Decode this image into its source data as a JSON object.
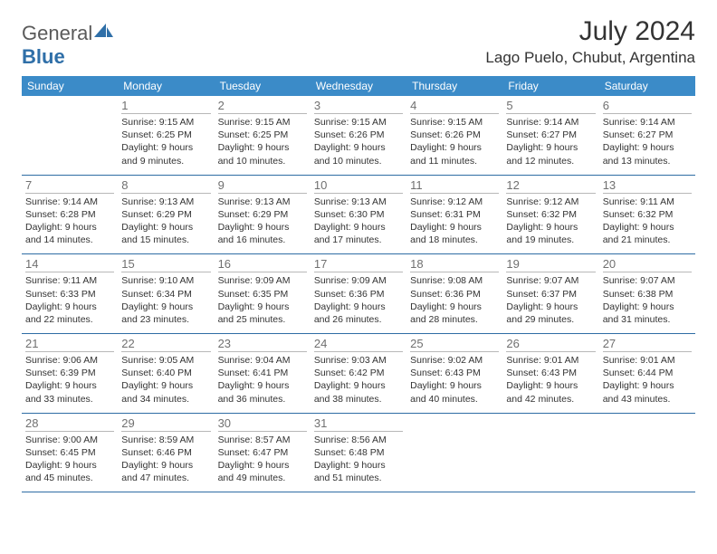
{
  "brand": {
    "prefix": "General",
    "suffix": "Blue"
  },
  "title": "July 2024",
  "location": "Lago Puelo, Chubut, Argentina",
  "colors": {
    "header_bg": "#3b8bc8",
    "header_text": "#ffffff",
    "row_border": "#2e6da4",
    "daynum_border": "#b8b8b8",
    "daynum_color": "#707070",
    "brand_blue": "#2f6fa8"
  },
  "days_of_week": [
    "Sunday",
    "Monday",
    "Tuesday",
    "Wednesday",
    "Thursday",
    "Friday",
    "Saturday"
  ],
  "weeks": [
    [
      null,
      {
        "n": "1",
        "sr": "9:15 AM",
        "ss": "6:25 PM",
        "dl": "9 hours and 9 minutes."
      },
      {
        "n": "2",
        "sr": "9:15 AM",
        "ss": "6:25 PM",
        "dl": "9 hours and 10 minutes."
      },
      {
        "n": "3",
        "sr": "9:15 AM",
        "ss": "6:26 PM",
        "dl": "9 hours and 10 minutes."
      },
      {
        "n": "4",
        "sr": "9:15 AM",
        "ss": "6:26 PM",
        "dl": "9 hours and 11 minutes."
      },
      {
        "n": "5",
        "sr": "9:14 AM",
        "ss": "6:27 PM",
        "dl": "9 hours and 12 minutes."
      },
      {
        "n": "6",
        "sr": "9:14 AM",
        "ss": "6:27 PM",
        "dl": "9 hours and 13 minutes."
      }
    ],
    [
      {
        "n": "7",
        "sr": "9:14 AM",
        "ss": "6:28 PM",
        "dl": "9 hours and 14 minutes."
      },
      {
        "n": "8",
        "sr": "9:13 AM",
        "ss": "6:29 PM",
        "dl": "9 hours and 15 minutes."
      },
      {
        "n": "9",
        "sr": "9:13 AM",
        "ss": "6:29 PM",
        "dl": "9 hours and 16 minutes."
      },
      {
        "n": "10",
        "sr": "9:13 AM",
        "ss": "6:30 PM",
        "dl": "9 hours and 17 minutes."
      },
      {
        "n": "11",
        "sr": "9:12 AM",
        "ss": "6:31 PM",
        "dl": "9 hours and 18 minutes."
      },
      {
        "n": "12",
        "sr": "9:12 AM",
        "ss": "6:32 PM",
        "dl": "9 hours and 19 minutes."
      },
      {
        "n": "13",
        "sr": "9:11 AM",
        "ss": "6:32 PM",
        "dl": "9 hours and 21 minutes."
      }
    ],
    [
      {
        "n": "14",
        "sr": "9:11 AM",
        "ss": "6:33 PM",
        "dl": "9 hours and 22 minutes."
      },
      {
        "n": "15",
        "sr": "9:10 AM",
        "ss": "6:34 PM",
        "dl": "9 hours and 23 minutes."
      },
      {
        "n": "16",
        "sr": "9:09 AM",
        "ss": "6:35 PM",
        "dl": "9 hours and 25 minutes."
      },
      {
        "n": "17",
        "sr": "9:09 AM",
        "ss": "6:36 PM",
        "dl": "9 hours and 26 minutes."
      },
      {
        "n": "18",
        "sr": "9:08 AM",
        "ss": "6:36 PM",
        "dl": "9 hours and 28 minutes."
      },
      {
        "n": "19",
        "sr": "9:07 AM",
        "ss": "6:37 PM",
        "dl": "9 hours and 29 minutes."
      },
      {
        "n": "20",
        "sr": "9:07 AM",
        "ss": "6:38 PM",
        "dl": "9 hours and 31 minutes."
      }
    ],
    [
      {
        "n": "21",
        "sr": "9:06 AM",
        "ss": "6:39 PM",
        "dl": "9 hours and 33 minutes."
      },
      {
        "n": "22",
        "sr": "9:05 AM",
        "ss": "6:40 PM",
        "dl": "9 hours and 34 minutes."
      },
      {
        "n": "23",
        "sr": "9:04 AM",
        "ss": "6:41 PM",
        "dl": "9 hours and 36 minutes."
      },
      {
        "n": "24",
        "sr": "9:03 AM",
        "ss": "6:42 PM",
        "dl": "9 hours and 38 minutes."
      },
      {
        "n": "25",
        "sr": "9:02 AM",
        "ss": "6:43 PM",
        "dl": "9 hours and 40 minutes."
      },
      {
        "n": "26",
        "sr": "9:01 AM",
        "ss": "6:43 PM",
        "dl": "9 hours and 42 minutes."
      },
      {
        "n": "27",
        "sr": "9:01 AM",
        "ss": "6:44 PM",
        "dl": "9 hours and 43 minutes."
      }
    ],
    [
      {
        "n": "28",
        "sr": "9:00 AM",
        "ss": "6:45 PM",
        "dl": "9 hours and 45 minutes."
      },
      {
        "n": "29",
        "sr": "8:59 AM",
        "ss": "6:46 PM",
        "dl": "9 hours and 47 minutes."
      },
      {
        "n": "30",
        "sr": "8:57 AM",
        "ss": "6:47 PM",
        "dl": "9 hours and 49 minutes."
      },
      {
        "n": "31",
        "sr": "8:56 AM",
        "ss": "6:48 PM",
        "dl": "9 hours and 51 minutes."
      },
      null,
      null,
      null
    ]
  ],
  "labels": {
    "sunrise": "Sunrise: ",
    "sunset": "Sunset: ",
    "daylight": "Daylight: "
  }
}
